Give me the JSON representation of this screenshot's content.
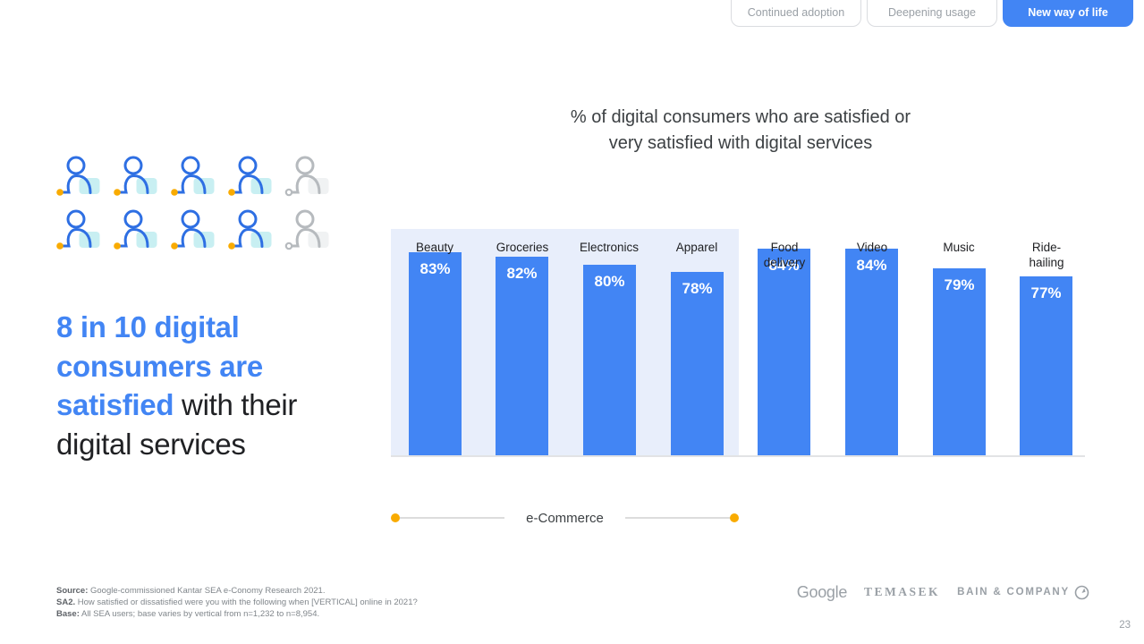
{
  "stage_tabs": {
    "items": [
      {
        "label": "Continued adoption",
        "active": false
      },
      {
        "label": "Deepening usage",
        "active": false
      },
      {
        "label": "New way of life",
        "active": true
      }
    ],
    "active_color": "#4285F4"
  },
  "pictogram": {
    "total_icons": 10,
    "highlighted_icons": 8,
    "icons_per_row": 5,
    "icon_accent_color": "#2e6fe3",
    "icon_square_color": "#c8eff2",
    "icon_dot_color": "#F9AB00",
    "icon_muted_color": "#b6babe"
  },
  "headline": {
    "full_text": "8 in 10 digital consumers are satisfied with their digital services",
    "accent_text": "8 in 10 digital consumers are satisfied",
    "accent_color": "#4285F4",
    "lines": [
      {
        "accent": "8 in 10 digital",
        "plain": ""
      },
      {
        "accent": "consumers are",
        "plain": ""
      },
      {
        "accent": "satisfied",
        "plain": " with their"
      },
      {
        "accent": "",
        "plain": "digital services"
      }
    ]
  },
  "chart_data": {
    "type": "bar",
    "title": "% of digital consumers who are satisfied or very satisfied with digital services",
    "title_line1": "% of digital consumers who are satisfied or",
    "title_line2": "very satisfied with digital services",
    "categories": [
      "Beauty",
      "Groceries",
      "Electronics",
      "Apparel",
      "Food delivery",
      "Video",
      "Music",
      "Ride-hailing"
    ],
    "tick_labels": [
      "Beauty",
      "Groceries",
      "Electronics",
      "Apparel",
      "Food\ndelivery",
      "Video",
      "Music",
      "Ride-\nhailing"
    ],
    "values": [
      83,
      82,
      80,
      78,
      84,
      84,
      79,
      77
    ],
    "unit": "%",
    "value_labels": [
      "83%",
      "82%",
      "80%",
      "78%",
      "84%",
      "84%",
      "79%",
      "77%"
    ],
    "bar_color": "#4285F4",
    "grid": false,
    "y_axis_visible": false,
    "value_labels_inside_bars": true,
    "highlight_group": {
      "label": "e-Commerce",
      "categories": [
        "Beauty",
        "Groceries",
        "Electronics",
        "Apparel"
      ],
      "bg_color": "#E8EEFB",
      "marker_color": "#F9AB00"
    }
  },
  "footer": {
    "notes": [
      {
        "bold": "Source:",
        "text": " Google-commissioned Kantar SEA e-Conomy Research 2021."
      },
      {
        "bold": "SA2.",
        "text": " How satisfied or dissatisfied were you with the following when [VERTICAL] online in 2021?"
      },
      {
        "bold": "Base:",
        "text": " All SEA users; base varies by vertical from n=1,232 to n=8,954."
      }
    ],
    "logos": [
      "Google",
      "TEMASEK",
      "BAIN & COMPANY"
    ],
    "page_number": "23"
  }
}
